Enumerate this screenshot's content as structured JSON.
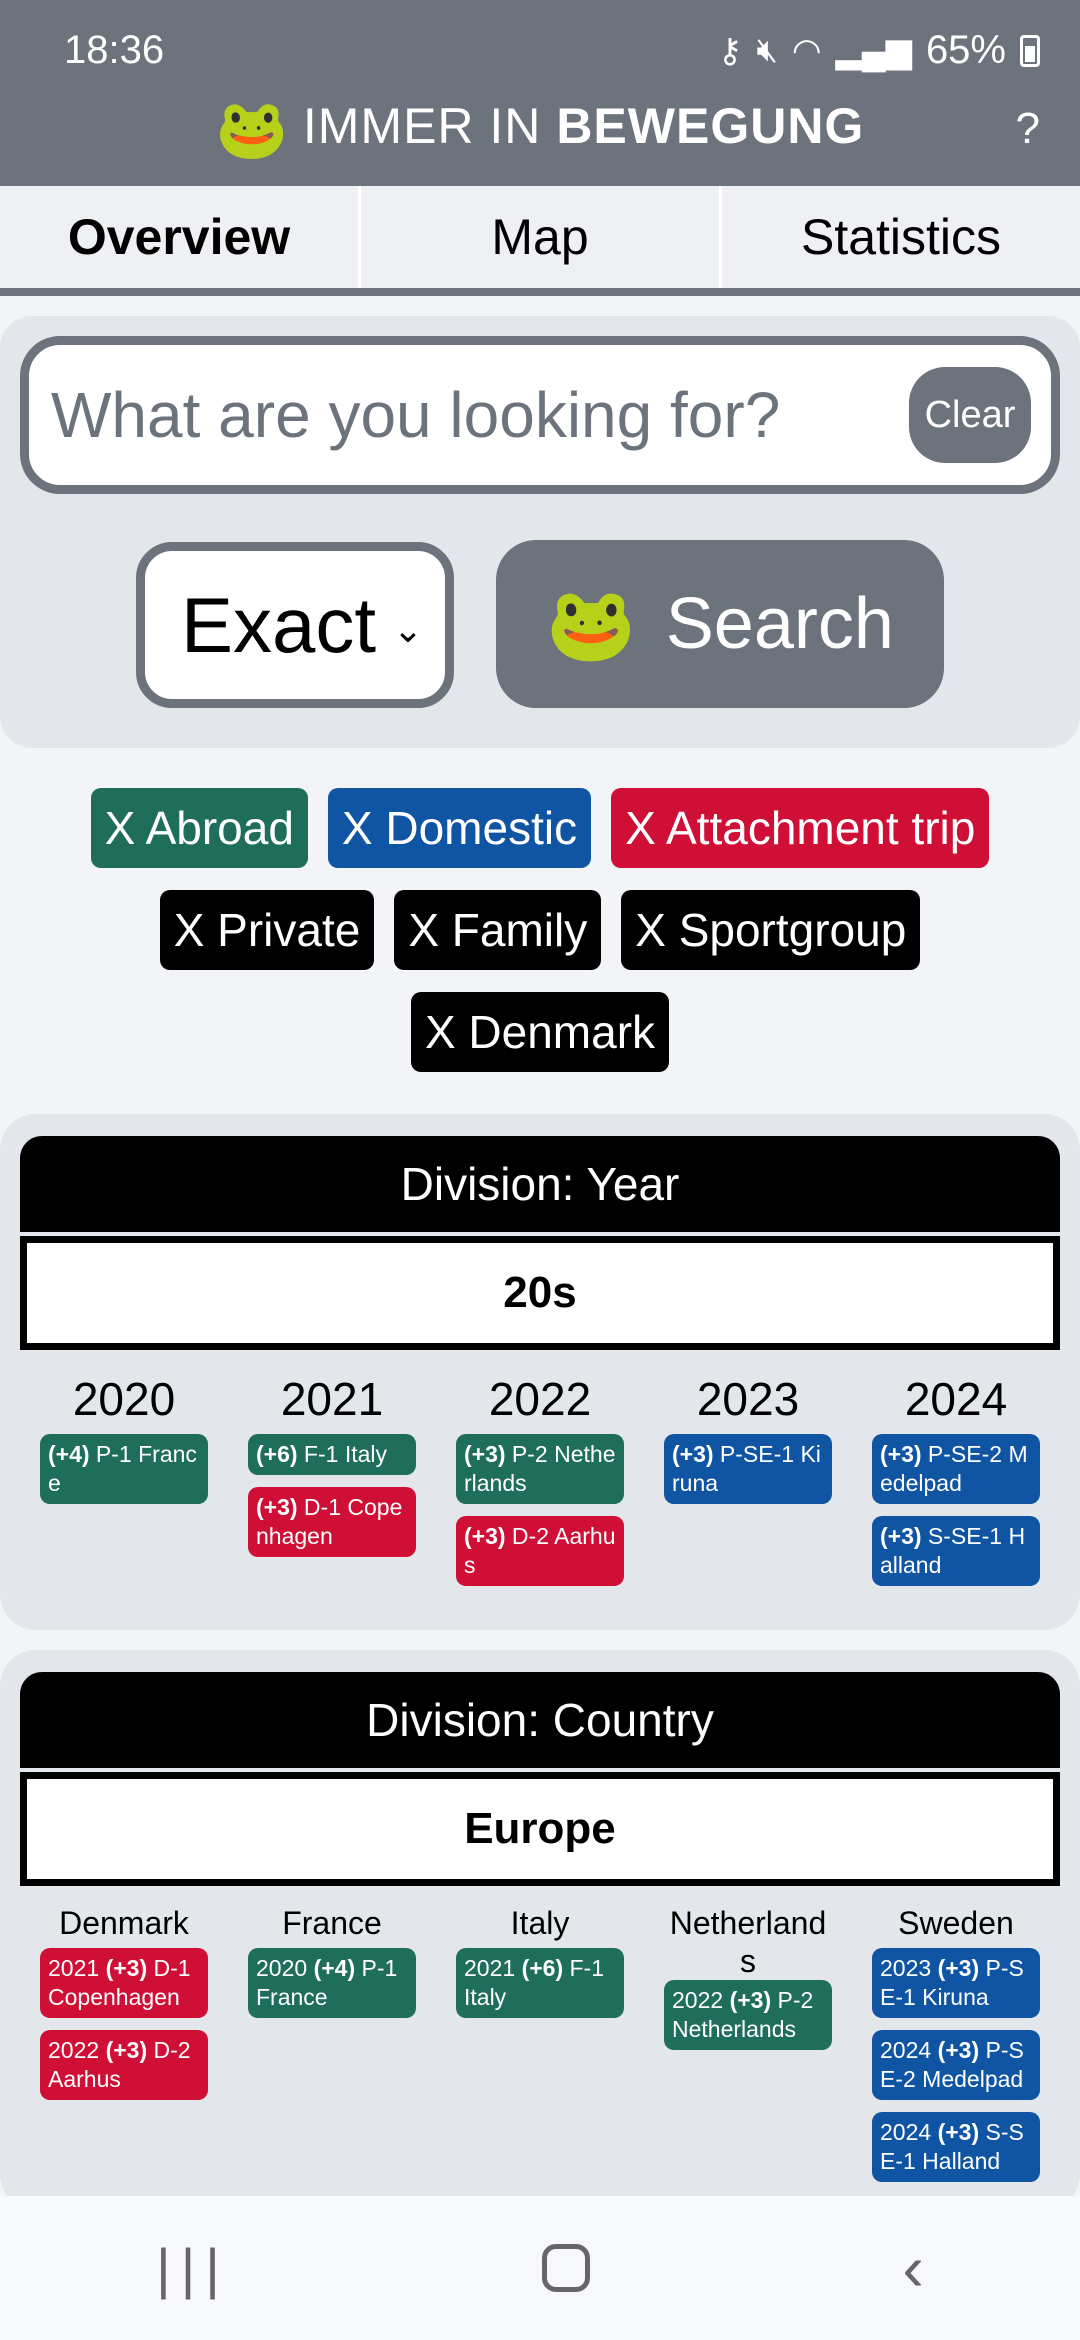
{
  "status": {
    "time": "18:36",
    "battery": "65%"
  },
  "app": {
    "title_regular": "IMMER IN",
    "title_bold": "BEWEGUNG",
    "help": "?"
  },
  "tabs": [
    {
      "label": "Overview",
      "active": true
    },
    {
      "label": "Map",
      "active": false
    },
    {
      "label": "Statistics",
      "active": false
    }
  ],
  "search": {
    "placeholder": "What are you looking for?",
    "value": "",
    "clear_label": "Clear",
    "mode": "Exact",
    "button_label": "Search"
  },
  "filters": {
    "row1": [
      {
        "label": "X Abroad",
        "color": "green"
      },
      {
        "label": "X Domestic",
        "color": "blue"
      },
      {
        "label": "X Attachment trip",
        "color": "red"
      }
    ],
    "row2": [
      {
        "label": "X Private",
        "color": "black"
      },
      {
        "label": "X Family",
        "color": "black"
      },
      {
        "label": "X Sportgroup",
        "color": "black"
      }
    ],
    "row3": [
      {
        "label": "X Denmark",
        "color": "black"
      }
    ]
  },
  "division_year": {
    "title": "Division: Year",
    "group": "20s",
    "columns": [
      {
        "title": "2020",
        "items": [
          {
            "count": "(+4)",
            "text": " P-1 France",
            "color": "green"
          }
        ]
      },
      {
        "title": "2021",
        "items": [
          {
            "count": "(+6)",
            "text": " F-1 Italy",
            "color": "green"
          },
          {
            "count": "(+3)",
            "text": " D-1 Copenhagen",
            "color": "red"
          }
        ]
      },
      {
        "title": "2022",
        "items": [
          {
            "count": "(+3)",
            "text": " P-2 Netherlands",
            "color": "green"
          },
          {
            "count": "(+3)",
            "text": " D-2 Aarhus",
            "color": "red"
          }
        ]
      },
      {
        "title": "2023",
        "items": [
          {
            "count": "(+3)",
            "text": " P-SE-1 Kiruna",
            "color": "blue"
          }
        ]
      },
      {
        "title": "2024",
        "items": [
          {
            "count": "(+3)",
            "text": " P-SE-2 Medelpad",
            "color": "blue"
          },
          {
            "count": "(+3)",
            "text": " S-SE-1 Halland",
            "color": "blue"
          }
        ]
      }
    ]
  },
  "division_country": {
    "title": "Division: Country",
    "group": "Europe",
    "columns": [
      {
        "title": "Denmark",
        "items": [
          {
            "year": "2021 ",
            "count": "(+3)",
            "text": " D-1 Copenhagen",
            "color": "red"
          },
          {
            "year": "2022 ",
            "count": "(+3)",
            "text": " D-2 Aarhus",
            "color": "red"
          }
        ]
      },
      {
        "title": "France",
        "items": [
          {
            "year": "2020 ",
            "count": "(+4)",
            "text": " P-1 France",
            "color": "green"
          }
        ]
      },
      {
        "title": "Italy",
        "items": [
          {
            "year": "2021 ",
            "count": "(+6)",
            "text": " F-1 Italy",
            "color": "green"
          }
        ]
      },
      {
        "title": "Netherlands",
        "items": [
          {
            "year": "2022 ",
            "count": "(+3)",
            "text": " P-2 Netherlands",
            "color": "green"
          }
        ]
      },
      {
        "title": "Sweden",
        "items": [
          {
            "year": "2023 ",
            "count": "(+3)",
            "text": " P-SE-1 Kiruna",
            "color": "blue"
          },
          {
            "year": "2024 ",
            "count": "(+3)",
            "text": " P-SE-2 Medelpad",
            "color": "blue"
          },
          {
            "year": "2024 ",
            "count": "(+3)",
            "text": " S-SE-1 Halland",
            "color": "blue"
          }
        ]
      }
    ]
  }
}
